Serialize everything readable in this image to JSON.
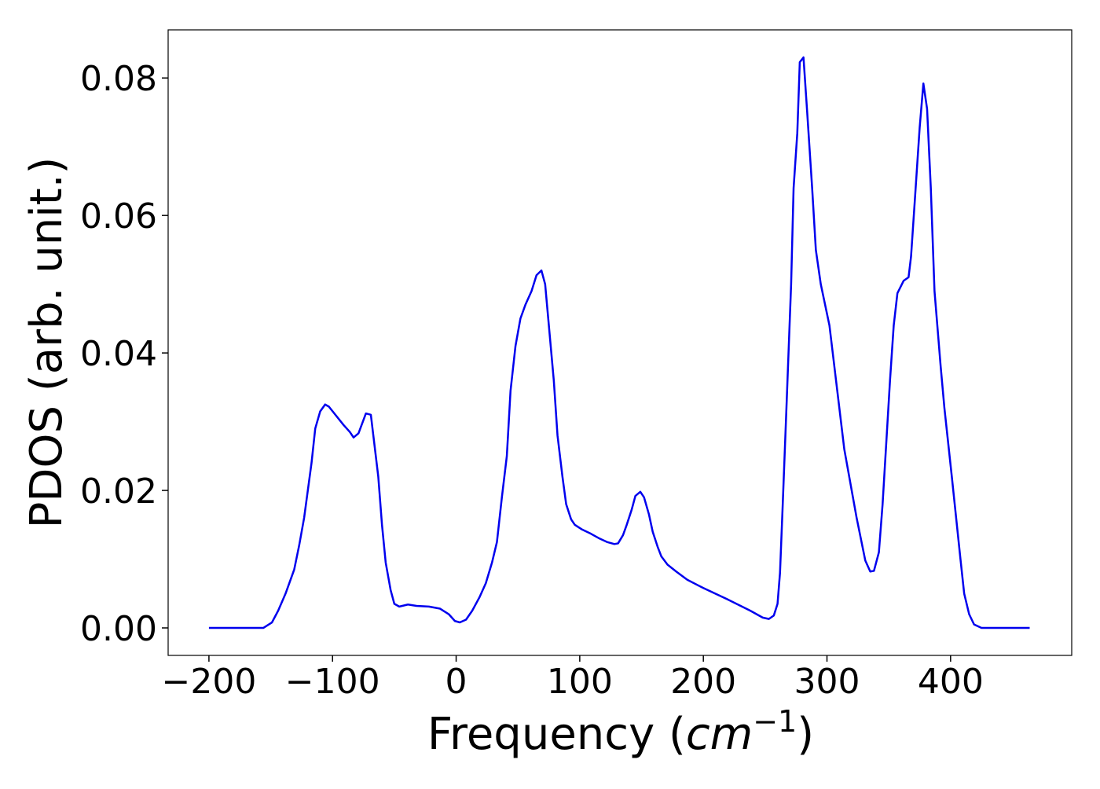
{
  "chart_data": {
    "type": "line",
    "xlabel": [
      "Frequency (",
      "cm",
      "−1",
      ")"
    ],
    "ylabel": "PDOS (arb. unit.)",
    "xlim": [
      -233,
      498
    ],
    "ylim": [
      -0.004,
      0.087
    ],
    "xticks": [
      {
        "value": -200,
        "label": "−200"
      },
      {
        "value": -100,
        "label": "−100"
      },
      0,
      100,
      200,
      300,
      400
    ],
    "yticks": [
      {
        "value": 0,
        "label": "0.00"
      },
      {
        "value": 0.02,
        "label": "0.02"
      },
      {
        "value": 0.04,
        "label": "0.04"
      },
      {
        "value": 0.06,
        "label": "0.06"
      },
      {
        "value": 0.08,
        "label": "0.08"
      }
    ],
    "x": [
      -200,
      -156,
      -149,
      -144,
      -138,
      -131,
      -127,
      -123,
      -117,
      -114,
      -110,
      -106,
      -103,
      -91,
      -86,
      -83,
      -79,
      -73,
      -69,
      -67,
      -63,
      -60,
      -57,
      -53,
      -50,
      -46,
      -39,
      -32,
      -22,
      -13,
      -6,
      -1,
      3,
      8,
      13,
      19,
      24,
      29,
      33,
      37,
      41,
      44,
      48,
      52,
      56,
      61,
      65,
      69,
      72,
      75,
      79,
      82,
      86,
      89,
      93,
      96,
      102,
      109,
      116,
      122,
      128,
      131,
      135,
      138,
      142,
      145,
      149,
      152,
      156,
      159,
      163,
      166,
      171,
      178,
      187,
      200,
      219,
      238,
      248,
      253,
      257,
      260,
      262,
      264,
      267,
      271,
      273,
      276,
      278,
      281,
      284,
      288,
      291,
      295,
      302,
      308,
      314,
      324,
      331,
      335,
      338,
      342,
      345,
      351,
      354,
      357,
      362,
      366,
      368,
      371,
      375,
      378,
      381,
      384,
      387,
      392,
      395,
      401,
      408,
      411,
      415,
      419,
      425,
      464
    ],
    "series": [
      {
        "name": "PDOS",
        "color": "#0000ee",
        "values": [
          0,
          0,
          0.0008,
          0.0025,
          0.005,
          0.0085,
          0.012,
          0.016,
          0.024,
          0.029,
          0.0315,
          0.0325,
          0.0322,
          0.0295,
          0.0285,
          0.0277,
          0.0283,
          0.0312,
          0.031,
          0.028,
          0.022,
          0.015,
          0.0095,
          0.0055,
          0.0035,
          0.0031,
          0.0034,
          0.0032,
          0.0031,
          0.0028,
          0.002,
          0.001,
          0.0008,
          0.0012,
          0.0025,
          0.0045,
          0.0065,
          0.0095,
          0.0125,
          0.019,
          0.025,
          0.0345,
          0.041,
          0.045,
          0.047,
          0.049,
          0.0513,
          0.052,
          0.05,
          0.044,
          0.036,
          0.028,
          0.022,
          0.018,
          0.0158,
          0.015,
          0.0143,
          0.0137,
          0.013,
          0.0125,
          0.0122,
          0.0123,
          0.0135,
          0.015,
          0.0172,
          0.0192,
          0.0198,
          0.019,
          0.0165,
          0.014,
          0.0118,
          0.0104,
          0.0092,
          0.0082,
          0.007,
          0.0058,
          0.0042,
          0.0025,
          0.0015,
          0.0013,
          0.0018,
          0.0035,
          0.008,
          0.017,
          0.031,
          0.05,
          0.064,
          0.072,
          0.0823,
          0.083,
          0.075,
          0.064,
          0.055,
          0.05,
          0.044,
          0.035,
          0.026,
          0.016,
          0.0098,
          0.0082,
          0.0083,
          0.011,
          0.018,
          0.036,
          0.044,
          0.0487,
          0.0505,
          0.051,
          0.054,
          0.062,
          0.0728,
          0.0792,
          0.0755,
          0.064,
          0.049,
          0.038,
          0.032,
          0.022,
          0.01,
          0.005,
          0.002,
          0.0005,
          0,
          0
        ]
      }
    ]
  }
}
